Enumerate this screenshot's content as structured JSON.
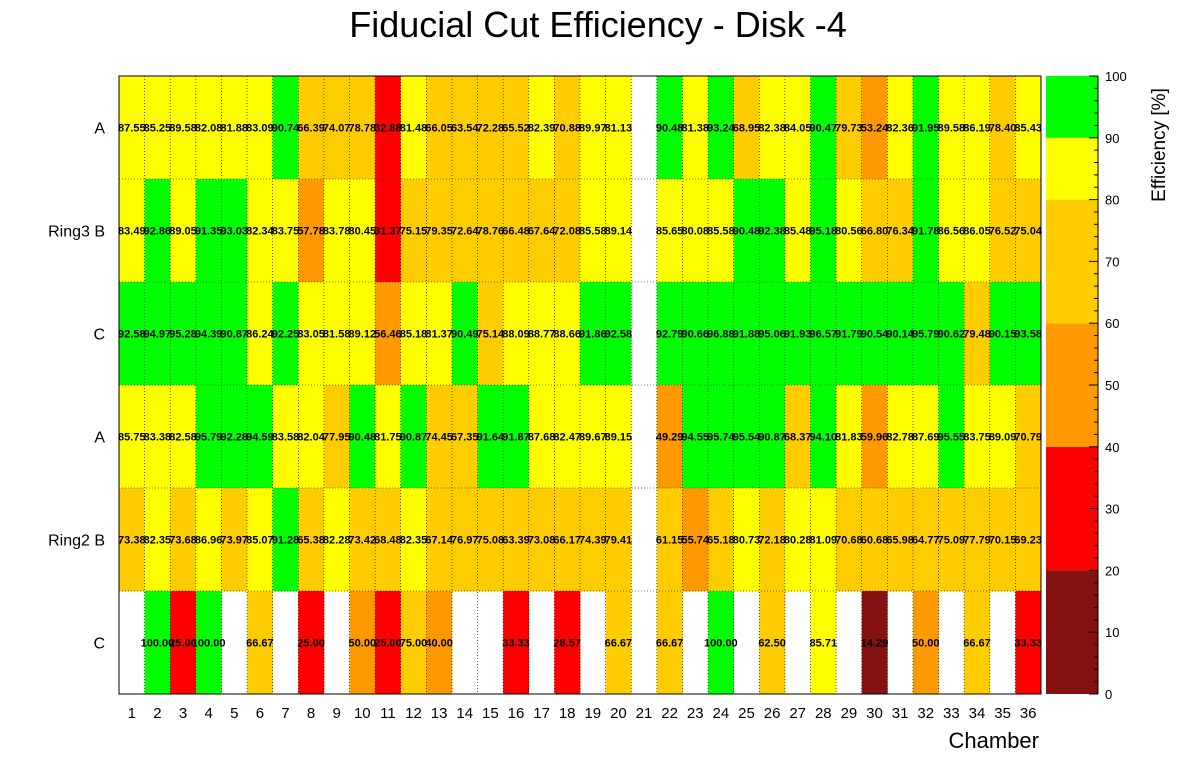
{
  "chart_data": {
    "type": "heatmap",
    "title": "Fiducial Cut Efficiency - Disk -4",
    "xlabel": "Chamber",
    "colorbar_label": "Efficiency [%]",
    "x": [
      1,
      2,
      3,
      4,
      5,
      6,
      7,
      8,
      9,
      10,
      11,
      12,
      13,
      14,
      15,
      16,
      17,
      18,
      19,
      20,
      21,
      22,
      23,
      24,
      25,
      26,
      27,
      28,
      29,
      30,
      31,
      32,
      33,
      34,
      35,
      36
    ],
    "y_labels": [
      "A",
      "Ring3 B",
      "C",
      "A",
      "Ring2 B",
      "C"
    ],
    "zlim": [
      0,
      100
    ],
    "colorbar_ticks": [
      0,
      10,
      20,
      30,
      40,
      50,
      60,
      70,
      80,
      90,
      100
    ],
    "color_bands": [
      {
        "range": [
          0,
          20
        ],
        "color": "#851010"
      },
      {
        "range": [
          20,
          40
        ],
        "color": "#ff0000"
      },
      {
        "range": [
          40,
          60
        ],
        "color": "#ff9900"
      },
      {
        "range": [
          60,
          80
        ],
        "color": "#ffcc00"
      },
      {
        "range": [
          80,
          90
        ],
        "color": "#ffff00"
      },
      {
        "range": [
          90,
          100
        ],
        "color": "#00ff00"
      }
    ],
    "grid": true,
    "values": [
      [
        87.55,
        85.25,
        89.58,
        82.08,
        81.88,
        83.09,
        90.74,
        66.39,
        74.07,
        78.78,
        32.88,
        81.48,
        66.05,
        63.54,
        72.28,
        65.52,
        82.39,
        70.88,
        89.97,
        81.13,
        null,
        90.48,
        81.38,
        93.24,
        68.95,
        82.38,
        84.05,
        90.47,
        79.73,
        53.24,
        82.36,
        91.95,
        89.58,
        86.19,
        78.4,
        85.43
      ],
      [
        83.49,
        92.86,
        89.05,
        91.35,
        93.03,
        82.34,
        83.75,
        57.78,
        83.78,
        80.45,
        31.37,
        75.15,
        79.35,
        72.64,
        78.76,
        66.48,
        67.64,
        72.08,
        85.58,
        89.14,
        null,
        85.65,
        80.08,
        85.58,
        90.48,
        92.38,
        85.48,
        95.18,
        80.56,
        66.8,
        76.34,
        91.78,
        86.56,
        86.05,
        76.52,
        75.04
      ],
      [
        92.58,
        94.97,
        95.28,
        94.39,
        90.87,
        86.24,
        92.25,
        83.05,
        81.58,
        89.12,
        56.46,
        85.18,
        81.37,
        90.49,
        75.14,
        88.09,
        88.77,
        88.66,
        91.86,
        92.58,
        null,
        92.79,
        90.66,
        96.88,
        91.88,
        95.06,
        91.93,
        96.57,
        91.79,
        90.54,
        90.14,
        95.79,
        90.62,
        79.48,
        90.15,
        93.58
      ],
      [
        85.75,
        83.38,
        82.58,
        95.79,
        92.28,
        94.59,
        83.58,
        82.04,
        77.95,
        90.48,
        81.75,
        90.87,
        74.45,
        67.35,
        91.64,
        91.87,
        87.68,
        82.47,
        89.67,
        89.15,
        null,
        49.29,
        94.55,
        95.74,
        95.54,
        90.87,
        68.37,
        94.1,
        81.83,
        59.96,
        82.78,
        87.69,
        95.55,
        83.75,
        89.09,
        70.79
      ],
      [
        73.38,
        82.35,
        73.68,
        86.96,
        73.97,
        85.07,
        91.28,
        65.38,
        82.28,
        73.42,
        68.48,
        82.35,
        67.14,
        76.97,
        75.08,
        63.39,
        73.08,
        66.17,
        74.39,
        79.41,
        null,
        61.15,
        55.74,
        65.18,
        80.73,
        72.18,
        80.28,
        81.09,
        70.68,
        60.68,
        65.98,
        64.77,
        75.09,
        77.79,
        70.15,
        69.23
      ],
      [
        null,
        100.0,
        25.0,
        100.0,
        null,
        66.67,
        null,
        25.0,
        null,
        50.0,
        25.0,
        75.0,
        40.0,
        null,
        null,
        33.33,
        null,
        28.57,
        null,
        66.67,
        null,
        66.67,
        null,
        100.0,
        null,
        62.5,
        null,
        85.71,
        null,
        14.29,
        null,
        50.0,
        null,
        66.67,
        null,
        33.33
      ]
    ]
  }
}
